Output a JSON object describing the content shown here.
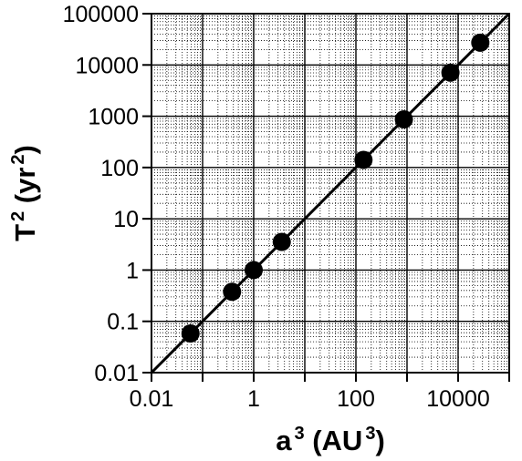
{
  "chart_data": {
    "type": "scatter",
    "xlabel": {
      "base": "a",
      "exp": "3",
      "open": " (AU",
      "unit_exp": "3",
      "close": ")"
    },
    "ylabel": {
      "base": "T",
      "exp": "2",
      "open": " (yr",
      "unit_exp": "2",
      "close": ")"
    },
    "xscale": "log",
    "yscale": "log",
    "xlim": [
      0.01,
      100000
    ],
    "ylim": [
      0.01,
      100000
    ],
    "xtick_labels": [
      {
        "value": 0.01,
        "label": "0.01"
      },
      {
        "value": 1,
        "label": "1"
      },
      {
        "value": 100,
        "label": "100"
      },
      {
        "value": 10000,
        "label": "10000"
      }
    ],
    "ytick_labels": [
      {
        "value": 0.01,
        "label": "0.01"
      },
      {
        "value": 0.1,
        "label": "0.1"
      },
      {
        "value": 1,
        "label": "1"
      },
      {
        "value": 10,
        "label": "10"
      },
      {
        "value": 100,
        "label": "100"
      },
      {
        "value": 1000,
        "label": "1000"
      },
      {
        "value": 10000,
        "label": "10000"
      },
      {
        "value": 100000,
        "label": "100000"
      }
    ],
    "grid": true,
    "points": [
      {
        "x": 0.058,
        "y": 0.058
      },
      {
        "x": 0.377,
        "y": 0.377
      },
      {
        "x": 1,
        "y": 1
      },
      {
        "x": 3.54,
        "y": 3.54
      },
      {
        "x": 140.6,
        "y": 140.6
      },
      {
        "x": 867.9,
        "y": 867.9
      },
      {
        "x": 7078,
        "y": 7078
      },
      {
        "x": 27166,
        "y": 27166
      }
    ],
    "fit_line": {
      "from": [
        0.01,
        0.01
      ],
      "to": [
        100000,
        100000
      ]
    }
  }
}
